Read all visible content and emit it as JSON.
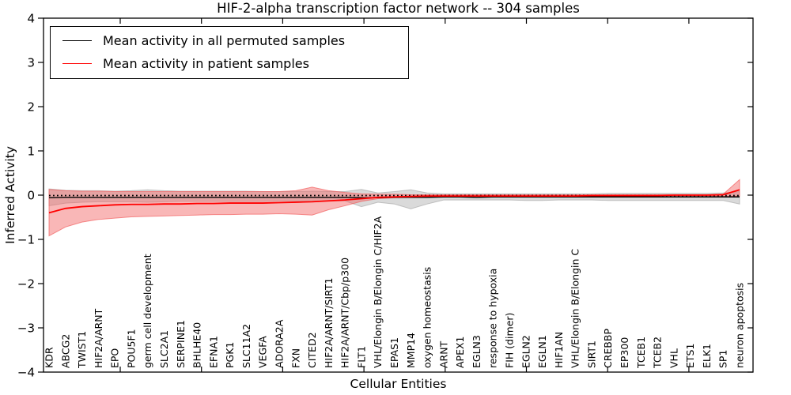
{
  "chart_data": {
    "type": "line",
    "title": "HIF-2-alpha transcription factor network -- 304 samples",
    "xlabel": "Cellular Entities",
    "ylabel": "Inferred Activity",
    "ylim": [
      -4,
      4
    ],
    "yticks": [
      4,
      3,
      2,
      1,
      0,
      -1,
      -2,
      -3,
      -4
    ],
    "grid": false,
    "legend_position": "upper left",
    "zero_line": {
      "style": "dotted",
      "value": 0,
      "color": "#000000"
    },
    "categories": [
      "KDR",
      "ABCG2",
      "TWIST1",
      "HIF2A/ARNT",
      "EPO",
      "POU5F1",
      "germ cell development",
      "SLC2A1",
      "SERPINE1",
      "BHLHE40",
      "EFNA1",
      "PGK1",
      "SLC11A2",
      "VEGFA",
      "ADORA2A",
      "FXN",
      "CITED2",
      "HIF2A/ARNT/SIRT1",
      "HIF2A/ARNT/Cbp/p300",
      "FLT1",
      "VHL/Elongin B/Elongin C/HIF2A",
      "EPAS1",
      "MMP14",
      "oxygen homeostasis",
      "ARNT",
      "APEX1",
      "EGLN3",
      "response to hypoxia",
      "FIH (dimer)",
      "EGLN2",
      "EGLN1",
      "HIF1AN",
      "VHL/Elongin B/Elongin C",
      "SIRT1",
      "CREBBP",
      "EP300",
      "TCEB1",
      "TCEB2",
      "VHL",
      "ETS1",
      "ELK1",
      "SP1",
      "neuron apoptosis"
    ],
    "series": [
      {
        "name": "Mean activity in all permuted samples",
        "color": "#000000",
        "values": [
          -0.06,
          -0.05,
          -0.05,
          -0.05,
          -0.05,
          -0.05,
          -0.05,
          -0.05,
          -0.05,
          -0.05,
          -0.05,
          -0.05,
          -0.05,
          -0.05,
          -0.05,
          -0.05,
          -0.05,
          -0.05,
          -0.05,
          -0.06,
          -0.06,
          -0.05,
          -0.05,
          -0.05,
          -0.04,
          -0.04,
          -0.05,
          -0.04,
          -0.04,
          -0.04,
          -0.04,
          -0.04,
          -0.04,
          -0.04,
          -0.04,
          -0.04,
          -0.04,
          -0.04,
          -0.04,
          -0.04,
          -0.04,
          -0.04,
          -0.04
        ]
      },
      {
        "name": "Mean activity in patient samples",
        "color": "#ff0000",
        "values": [
          -0.4,
          -0.3,
          -0.26,
          -0.24,
          -0.22,
          -0.21,
          -0.21,
          -0.2,
          -0.2,
          -0.19,
          -0.19,
          -0.18,
          -0.18,
          -0.18,
          -0.17,
          -0.16,
          -0.15,
          -0.13,
          -0.11,
          -0.08,
          -0.05,
          -0.04,
          -0.03,
          -0.02,
          -0.02,
          -0.02,
          -0.02,
          -0.02,
          -0.02,
          -0.02,
          -0.02,
          -0.02,
          -0.02,
          -0.01,
          -0.01,
          -0.01,
          -0.01,
          -0.01,
          0.0,
          0.0,
          0.0,
          0.01,
          0.12
        ]
      }
    ],
    "bands": [
      {
        "name": "permuted-samples-range",
        "color": "#a8a8a8",
        "fill_opacity": 0.42,
        "upper": [
          0.14,
          0.11,
          0.1,
          0.1,
          0.09,
          0.1,
          0.12,
          0.1,
          0.09,
          0.09,
          0.09,
          0.09,
          0.09,
          0.08,
          0.08,
          0.08,
          0.09,
          0.08,
          0.08,
          0.13,
          0.05,
          0.08,
          0.12,
          0.05,
          0.03,
          0.03,
          0.03,
          0.03,
          0.03,
          0.03,
          0.03,
          0.03,
          0.03,
          0.03,
          0.04,
          0.04,
          0.04,
          0.04,
          0.04,
          0.04,
          0.04,
          0.05,
          0.08
        ],
        "lower": [
          -0.24,
          -0.18,
          -0.16,
          -0.15,
          -0.15,
          -0.15,
          -0.16,
          -0.15,
          -0.14,
          -0.14,
          -0.14,
          -0.14,
          -0.14,
          -0.14,
          -0.13,
          -0.13,
          -0.14,
          -0.13,
          -0.13,
          -0.26,
          -0.16,
          -0.2,
          -0.31,
          -0.2,
          -0.11,
          -0.11,
          -0.11,
          -0.11,
          -0.11,
          -0.12,
          -0.12,
          -0.11,
          -0.11,
          -0.11,
          -0.12,
          -0.12,
          -0.12,
          -0.12,
          -0.12,
          -0.12,
          -0.12,
          -0.12,
          -0.2
        ]
      },
      {
        "name": "patient-samples-range",
        "color": "#f26060",
        "fill_opacity": 0.45,
        "upper": [
          0.13,
          0.1,
          0.09,
          0.09,
          0.08,
          0.08,
          0.08,
          0.08,
          0.08,
          0.08,
          0.08,
          0.08,
          0.08,
          0.08,
          0.08,
          0.1,
          0.18,
          0.1,
          0.06,
          0.03,
          0.02,
          0.02,
          0.01,
          0.01,
          0.01,
          0.01,
          0.01,
          0.01,
          0.01,
          0.01,
          0.01,
          0.01,
          0.01,
          0.01,
          0.01,
          0.01,
          0.01,
          0.01,
          0.01,
          0.01,
          0.01,
          0.02,
          0.35
        ],
        "lower": [
          -0.92,
          -0.72,
          -0.61,
          -0.55,
          -0.52,
          -0.49,
          -0.48,
          -0.47,
          -0.46,
          -0.45,
          -0.44,
          -0.44,
          -0.43,
          -0.43,
          -0.42,
          -0.43,
          -0.45,
          -0.33,
          -0.24,
          -0.14,
          -0.08,
          -0.06,
          -0.05,
          -0.04,
          -0.04,
          -0.04,
          -0.03,
          -0.03,
          -0.03,
          -0.03,
          -0.03,
          -0.03,
          -0.03,
          -0.03,
          -0.03,
          -0.03,
          -0.03,
          -0.03,
          -0.03,
          -0.03,
          -0.03,
          -0.03,
          -0.02
        ]
      }
    ]
  }
}
